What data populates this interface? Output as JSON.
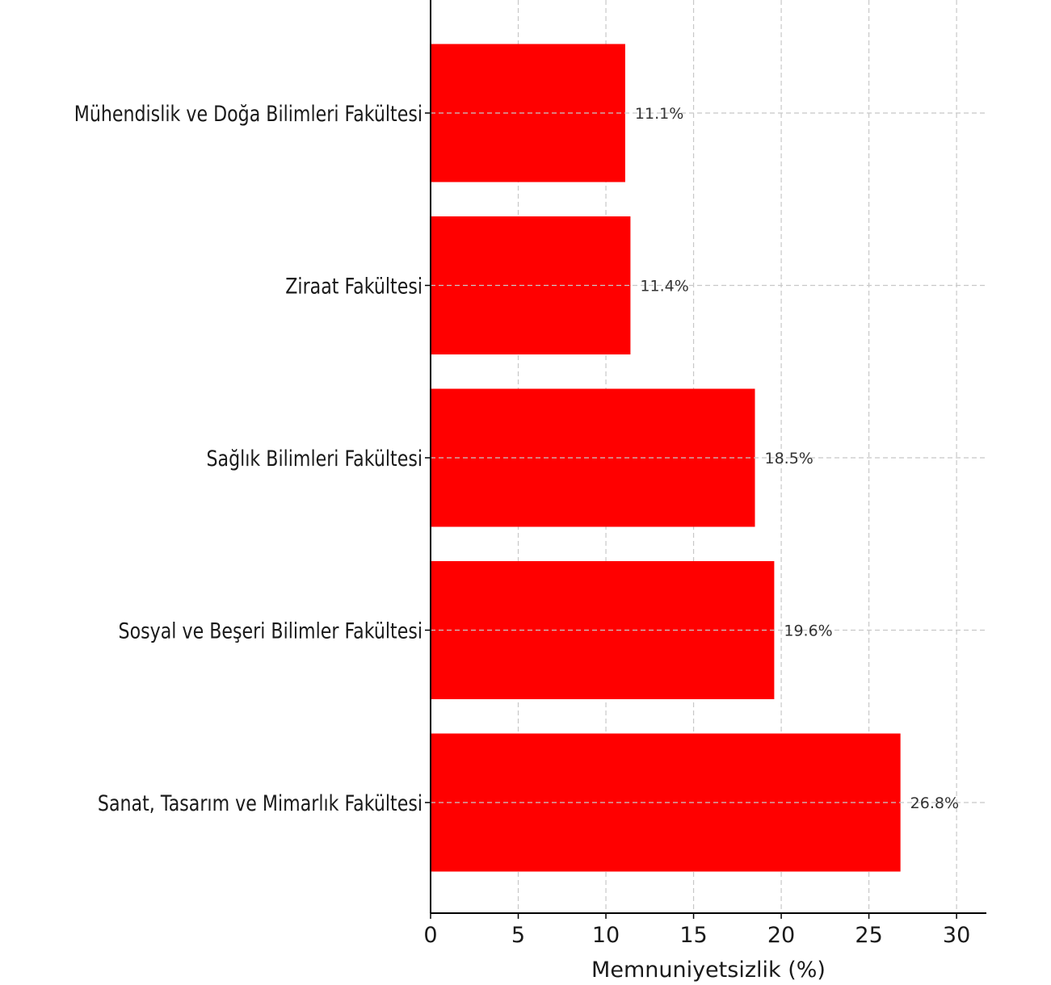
{
  "chart_data": {
    "type": "bar",
    "orientation": "horizontal",
    "categories": [
      "Mühendislik ve Doğa Bilimleri Fakültesi",
      "Ziraat Fakültesi",
      "Sağlık Bilimleri Fakültesi",
      "Sosyal ve Beşeri Bilimler Fakültesi",
      "Sanat, Tasarım ve Mimarlık Fakültesi"
    ],
    "values": [
      11.1,
      11.4,
      18.5,
      19.6,
      26.8
    ],
    "value_labels": [
      "11.1%",
      "11.4%",
      "18.5%",
      "19.6%",
      "26.8%"
    ],
    "xlabel": "Memnuniyetsizlik (%)",
    "xlim": [
      0,
      31.7
    ],
    "xticks": [
      0,
      5,
      10,
      15,
      20,
      25,
      30
    ],
    "grid": true,
    "bar_color": "#ff0000"
  }
}
